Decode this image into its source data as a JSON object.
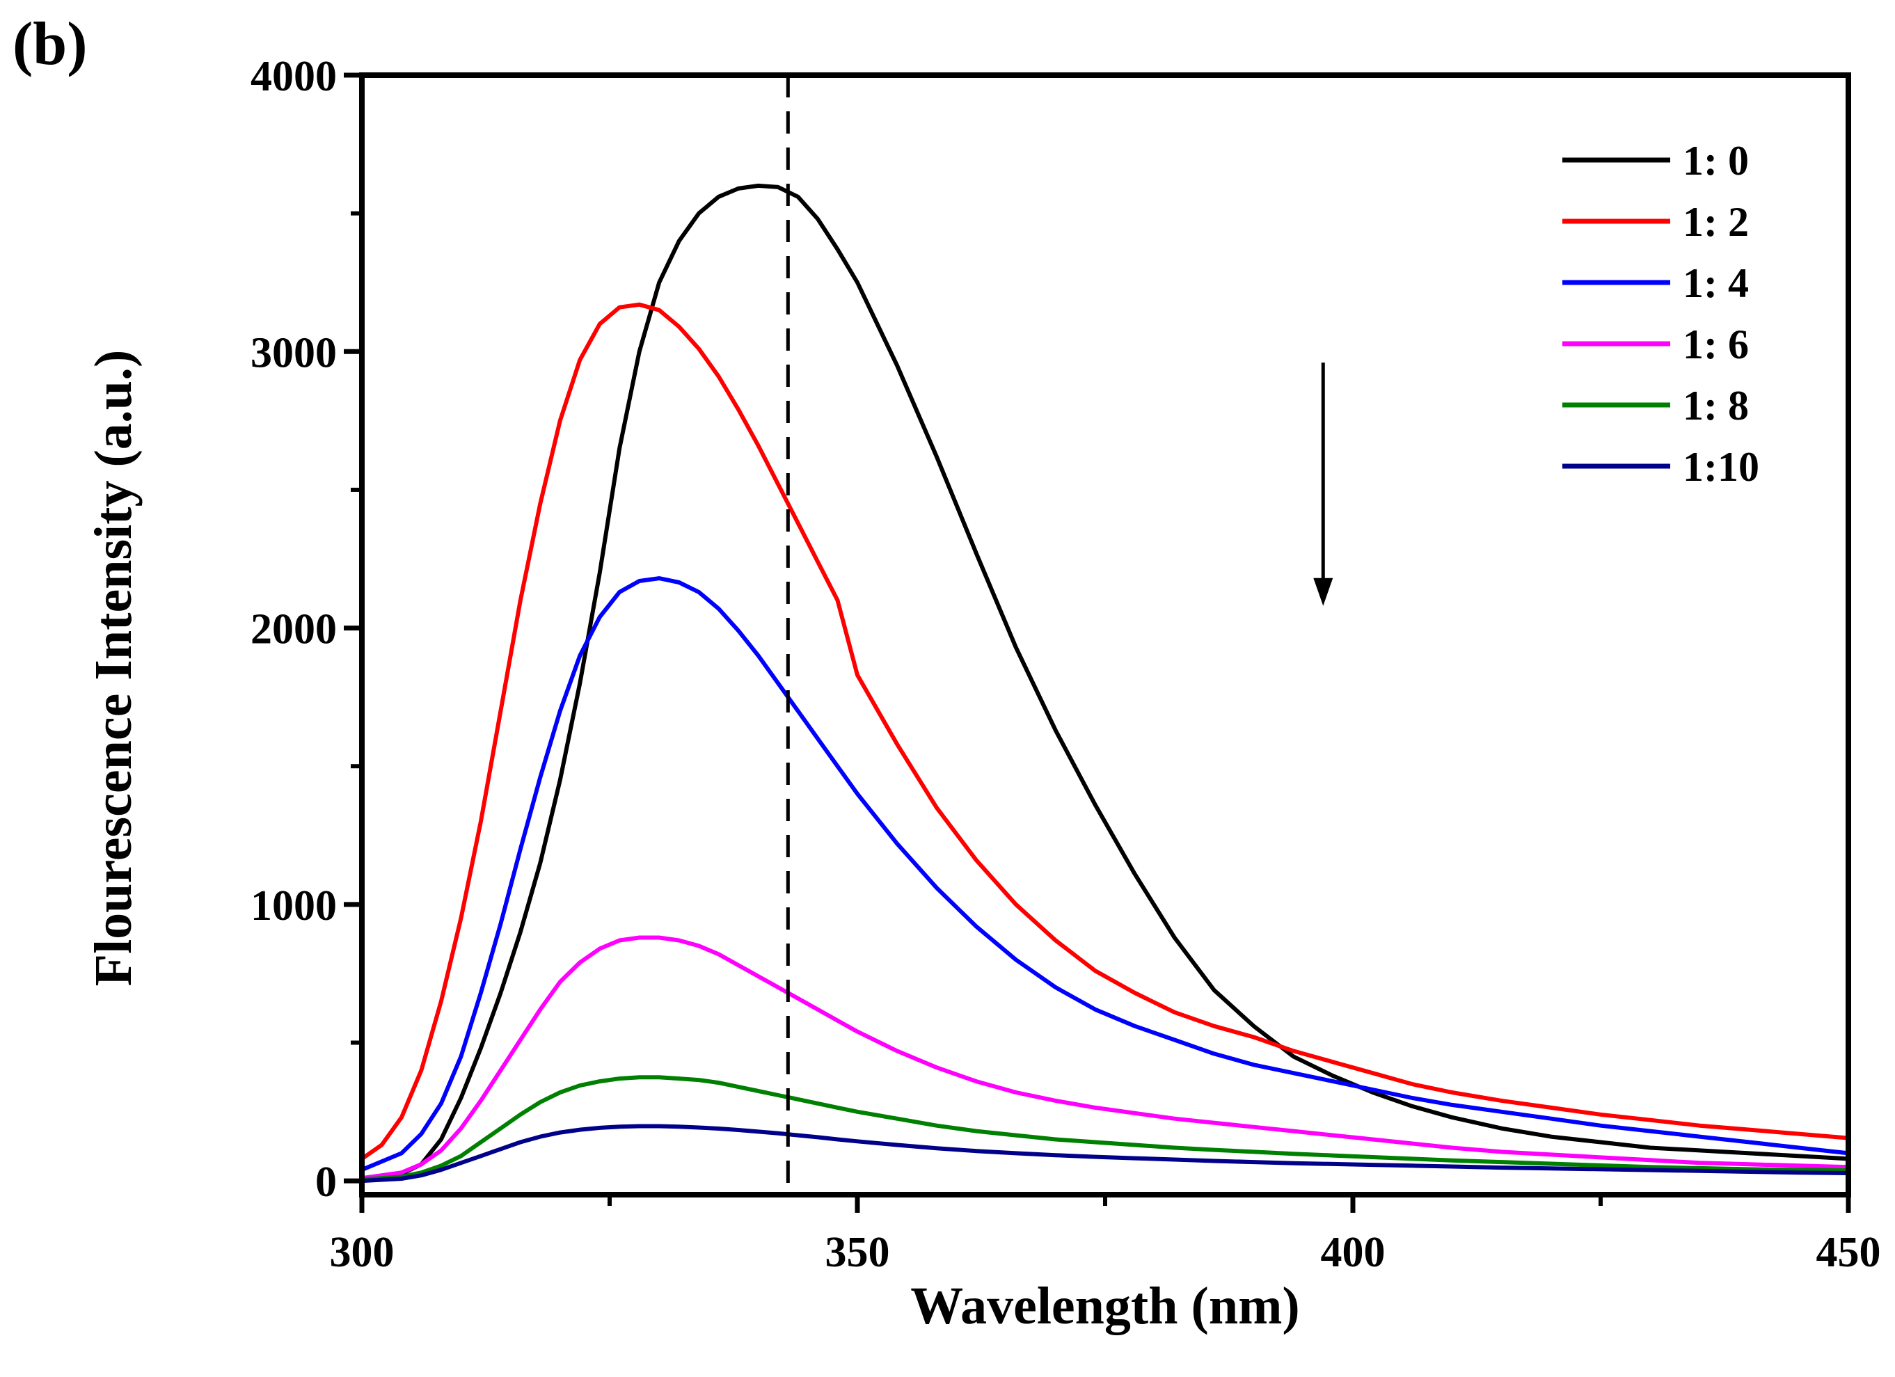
{
  "panel_label": "(b)",
  "chart_data": {
    "type": "line",
    "xlabel": "Wavelength (nm)",
    "ylabel": "Flourescence Intensity (a.u.)",
    "xlim": [
      300,
      450
    ],
    "ylim": [
      -50,
      4000
    ],
    "xticks": [
      300,
      350,
      400,
      450
    ],
    "xtick_labels": [
      "300",
      "350",
      "400",
      "450"
    ],
    "x_minor_ticks": [
      325,
      375,
      425
    ],
    "yticks": [
      0,
      1000,
      2000,
      3000,
      4000
    ],
    "ytick_labels": [
      "0",
      "1000",
      "2000",
      "3000",
      "4000"
    ],
    "y_minor_ticks": [
      500,
      1500,
      2500,
      3500
    ],
    "grid": false,
    "legend_position": "top-right",
    "annotations": {
      "dashed_line_x": 343,
      "arrow": {
        "x": 397,
        "y_from": 2960,
        "y_to": 2080,
        "direction": "down"
      }
    },
    "series": [
      {
        "name": "1: 0",
        "color": "#000000",
        "x": [
          300,
          304,
          306,
          308,
          310,
          312,
          314,
          316,
          318,
          320,
          322,
          324,
          326,
          328,
          330,
          332,
          334,
          336,
          338,
          340,
          342,
          344,
          346,
          348,
          350,
          354,
          358,
          362,
          366,
          370,
          374,
          378,
          382,
          386,
          390,
          394,
          398,
          402,
          406,
          410,
          415,
          420,
          425,
          430,
          435,
          440,
          445,
          450
        ],
        "y": [
          10,
          25,
          60,
          150,
          300,
          480,
          680,
          900,
          1150,
          1450,
          1800,
          2200,
          2650,
          3000,
          3250,
          3400,
          3500,
          3560,
          3590,
          3600,
          3595,
          3560,
          3480,
          3370,
          3250,
          2950,
          2620,
          2270,
          1930,
          1630,
          1360,
          1110,
          880,
          690,
          560,
          450,
          380,
          320,
          270,
          230,
          190,
          160,
          140,
          120,
          110,
          100,
          90,
          80
        ]
      },
      {
        "name": "1: 2",
        "color": "#ff0000",
        "x": [
          300,
          302,
          304,
          306,
          308,
          310,
          312,
          314,
          316,
          318,
          320,
          322,
          324,
          326,
          328,
          330,
          332,
          334,
          336,
          338,
          340,
          342,
          344,
          346,
          348,
          350,
          354,
          358,
          362,
          366,
          370,
          374,
          378,
          382,
          386,
          390,
          394,
          398,
          402,
          406,
          410,
          415,
          420,
          425,
          430,
          435,
          440,
          445,
          450
        ],
        "y": [
          80,
          130,
          230,
          400,
          650,
          950,
          1300,
          1700,
          2100,
          2450,
          2750,
          2970,
          3100,
          3160,
          3170,
          3150,
          3090,
          3010,
          2910,
          2790,
          2660,
          2520,
          2380,
          2240,
          2100,
          1830,
          1580,
          1350,
          1160,
          1000,
          870,
          760,
          680,
          610,
          560,
          520,
          470,
          430,
          390,
          350,
          320,
          290,
          265,
          240,
          220,
          200,
          185,
          170,
          155
        ]
      },
      {
        "name": "1: 4",
        "color": "#0000ff",
        "x": [
          300,
          304,
          306,
          308,
          310,
          312,
          314,
          316,
          318,
          320,
          322,
          324,
          326,
          328,
          330,
          332,
          334,
          336,
          338,
          340,
          342,
          344,
          346,
          348,
          350,
          354,
          358,
          362,
          366,
          370,
          374,
          378,
          382,
          386,
          390,
          394,
          398,
          402,
          406,
          410,
          415,
          420,
          425,
          430,
          435,
          440,
          445,
          450
        ],
        "y": [
          40,
          100,
          170,
          280,
          450,
          680,
          930,
          1200,
          1460,
          1700,
          1900,
          2040,
          2130,
          2170,
          2180,
          2165,
          2130,
          2070,
          1990,
          1900,
          1800,
          1700,
          1600,
          1500,
          1400,
          1220,
          1060,
          920,
          800,
          700,
          620,
          560,
          510,
          460,
          420,
          390,
          360,
          330,
          300,
          275,
          250,
          225,
          200,
          180,
          160,
          140,
          120,
          100
        ]
      },
      {
        "name": "1: 6",
        "color": "#ff00ff",
        "x": [
          300,
          304,
          306,
          308,
          310,
          312,
          314,
          316,
          318,
          320,
          322,
          324,
          326,
          328,
          330,
          332,
          334,
          336,
          338,
          340,
          342,
          344,
          346,
          348,
          350,
          354,
          358,
          362,
          366,
          370,
          374,
          378,
          382,
          386,
          390,
          394,
          398,
          402,
          406,
          410,
          415,
          420,
          425,
          430,
          435,
          440,
          445,
          450
        ],
        "y": [
          10,
          30,
          60,
          110,
          190,
          290,
          400,
          510,
          620,
          720,
          790,
          840,
          870,
          880,
          880,
          870,
          850,
          820,
          780,
          740,
          700,
          660,
          620,
          580,
          540,
          470,
          410,
          360,
          320,
          290,
          265,
          245,
          225,
          210,
          195,
          180,
          165,
          150,
          135,
          120,
          105,
          95,
          85,
          75,
          65,
          60,
          55,
          50
        ]
      },
      {
        "name": "1: 8",
        "color": "#008000",
        "x": [
          300,
          304,
          306,
          308,
          310,
          312,
          314,
          316,
          318,
          320,
          322,
          324,
          326,
          328,
          330,
          332,
          334,
          336,
          338,
          340,
          342,
          344,
          346,
          348,
          350,
          354,
          358,
          362,
          366,
          370,
          374,
          378,
          382,
          386,
          390,
          394,
          398,
          402,
          406,
          410,
          415,
          420,
          425,
          430,
          435,
          440,
          445,
          450
        ],
        "y": [
          5,
          15,
          30,
          55,
          90,
          140,
          190,
          240,
          285,
          320,
          345,
          360,
          370,
          375,
          375,
          370,
          365,
          355,
          340,
          325,
          310,
          295,
          280,
          265,
          250,
          225,
          200,
          180,
          165,
          150,
          140,
          130,
          120,
          112,
          105,
          98,
          92,
          86,
          80,
          74,
          68,
          62,
          56,
          50,
          46,
          42,
          40,
          38
        ]
      },
      {
        "name": "1:10",
        "color": "#00008b",
        "x": [
          300,
          304,
          306,
          308,
          310,
          312,
          314,
          316,
          318,
          320,
          322,
          324,
          326,
          328,
          330,
          332,
          334,
          336,
          338,
          340,
          342,
          344,
          346,
          348,
          350,
          354,
          358,
          362,
          366,
          370,
          374,
          378,
          382,
          386,
          390,
          394,
          398,
          402,
          406,
          410,
          415,
          420,
          425,
          430,
          435,
          440,
          445,
          450
        ],
        "y": [
          0,
          8,
          20,
          40,
          65,
          90,
          115,
          140,
          160,
          175,
          185,
          192,
          196,
          198,
          198,
          196,
          193,
          189,
          184,
          178,
          172,
          165,
          158,
          150,
          143,
          130,
          118,
          108,
          100,
          93,
          87,
          82,
          77,
          72,
          68,
          64,
          61,
          58,
          55,
          52,
          48,
          45,
          42,
          39,
          36,
          33,
          30,
          28
        ]
      }
    ]
  }
}
